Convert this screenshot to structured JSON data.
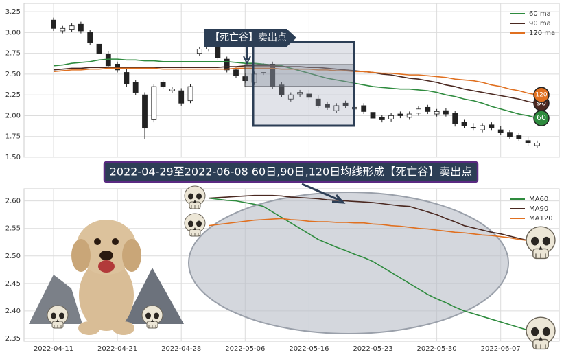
{
  "chart_data": [
    {
      "type": "candlestick",
      "annotation": "【死亡谷】卖出点",
      "ylim": [
        1.5,
        3.35
      ],
      "yticks": [
        {
          "value": 1.5,
          "label": "1.50"
        },
        1.75,
        {
          "value": 2,
          "label": "2.00"
        },
        2.25,
        {
          "value": 2.5,
          "label": "2.50"
        },
        2.75,
        {
          "value": 3,
          "label": "3.00"
        },
        3.25
      ],
      "xtick_indices": [
        0,
        7,
        14,
        21,
        28,
        35,
        42,
        49
      ],
      "grid": true,
      "legend": "upper right",
      "up_color": "#ffffff",
      "down_color": "#222222",
      "open": [
        3.15,
        3.02,
        3.04,
        3.1,
        3.0,
        2.86,
        2.74,
        2.62,
        2.52,
        2.4,
        2.25,
        1.95,
        2.4,
        2.3,
        2.3,
        2.18,
        2.75,
        2.8,
        2.82,
        2.68,
        2.55,
        2.47,
        2.4,
        2.52,
        2.62,
        2.37,
        2.2,
        2.26,
        2.26,
        2.2,
        2.14,
        2.06,
        2.15,
        2.08,
        2.12,
        2.04,
        1.98,
        1.96,
        2.02,
        1.98,
        2.03,
        2.1,
        2.02,
        2.06,
        2.03,
        1.92,
        1.86,
        1.83,
        1.89,
        1.83,
        1.8,
        1.76,
        1.7,
        1.64
      ],
      "high": [
        3.18,
        3.08,
        3.11,
        3.13,
        3.03,
        2.91,
        2.78,
        2.65,
        2.58,
        2.43,
        2.28,
        2.38,
        2.43,
        2.35,
        2.33,
        2.38,
        2.83,
        2.88,
        2.85,
        2.71,
        2.58,
        2.51,
        2.53,
        2.63,
        2.65,
        2.4,
        2.28,
        2.31,
        2.31,
        2.25,
        2.17,
        2.15,
        2.18,
        2.15,
        2.15,
        2.08,
        2.01,
        2.03,
        2.05,
        2.05,
        2.11,
        2.13,
        2.08,
        2.09,
        2.06,
        1.95,
        1.91,
        1.91,
        1.92,
        1.88,
        1.83,
        1.79,
        1.75,
        1.7
      ],
      "low": [
        3.02,
        2.99,
        3.01,
        2.99,
        2.85,
        2.72,
        2.57,
        2.52,
        2.35,
        2.25,
        1.72,
        1.92,
        2.32,
        2.27,
        2.12,
        2.15,
        2.72,
        2.77,
        2.67,
        2.52,
        2.45,
        2.39,
        2.37,
        2.49,
        2.32,
        2.22,
        2.17,
        2.22,
        2.19,
        2.09,
        2.07,
        2.03,
        2.09,
        2.05,
        2.02,
        1.94,
        1.92,
        1.93,
        1.97,
        1.95,
        2.0,
        2.02,
        1.99,
        1.99,
        1.87,
        1.85,
        1.82,
        1.8,
        1.82,
        1.77,
        1.72,
        1.69,
        1.64,
        1.61
      ],
      "close": [
        3.05,
        3.05,
        3.08,
        3.02,
        2.88,
        2.75,
        2.6,
        2.55,
        2.38,
        2.28,
        1.85,
        2.35,
        2.35,
        2.32,
        2.15,
        2.35,
        2.8,
        2.85,
        2.7,
        2.55,
        2.48,
        2.42,
        2.5,
        2.6,
        2.35,
        2.25,
        2.25,
        2.28,
        2.22,
        2.12,
        2.1,
        2.12,
        2.12,
        2.1,
        2.05,
        1.97,
        1.95,
        2.0,
        2.0,
        2.02,
        2.08,
        2.05,
        2.05,
        2.02,
        1.9,
        1.88,
        1.85,
        1.88,
        1.85,
        1.8,
        1.75,
        1.72,
        1.67,
        1.67
      ],
      "series": [
        {
          "name": "60 ma",
          "color": "#2e8b3e",
          "marker_label": "60",
          "values": [
            2.6,
            2.61,
            2.63,
            2.64,
            2.65,
            2.67,
            2.68,
            2.68,
            2.67,
            2.67,
            2.66,
            2.66,
            2.65,
            2.65,
            2.65,
            2.65,
            2.65,
            2.65,
            2.65,
            2.65,
            2.64,
            2.63,
            2.63,
            2.62,
            2.61,
            2.6,
            2.57,
            2.54,
            2.51,
            2.48,
            2.45,
            2.43,
            2.41,
            2.39,
            2.37,
            2.35,
            2.34,
            2.33,
            2.32,
            2.32,
            2.31,
            2.3,
            2.28,
            2.25,
            2.23,
            2.2,
            2.18,
            2.15,
            2.11,
            2.08,
            2.05,
            2.02,
            2.0,
            1.97
          ]
        },
        {
          "name": "90 ma",
          "color": "#4a2820",
          "marker_label": "90",
          "values": [
            2.55,
            2.56,
            2.57,
            2.57,
            2.58,
            2.58,
            2.58,
            2.58,
            2.58,
            2.58,
            2.58,
            2.58,
            2.58,
            2.58,
            2.58,
            2.58,
            2.58,
            2.58,
            2.58,
            2.59,
            2.59,
            2.6,
            2.6,
            2.6,
            2.6,
            2.59,
            2.59,
            2.59,
            2.58,
            2.58,
            2.57,
            2.56,
            2.55,
            2.54,
            2.53,
            2.52,
            2.5,
            2.49,
            2.47,
            2.45,
            2.44,
            2.42,
            2.4,
            2.37,
            2.35,
            2.32,
            2.3,
            2.28,
            2.26,
            2.24,
            2.22,
            2.2,
            2.17,
            2.15
          ]
        },
        {
          "name": "120 ma",
          "color": "#e07020",
          "marker_label": "120",
          "values": [
            2.53,
            2.54,
            2.55,
            2.55,
            2.56,
            2.56,
            2.57,
            2.57,
            2.57,
            2.57,
            2.57,
            2.57,
            2.56,
            2.56,
            2.56,
            2.56,
            2.56,
            2.56,
            2.56,
            2.56,
            2.57,
            2.57,
            2.57,
            2.57,
            2.57,
            2.56,
            2.56,
            2.56,
            2.56,
            2.55,
            2.55,
            2.54,
            2.54,
            2.53,
            2.53,
            2.52,
            2.51,
            2.51,
            2.5,
            2.49,
            2.49,
            2.48,
            2.47,
            2.46,
            2.44,
            2.43,
            2.42,
            2.4,
            2.37,
            2.35,
            2.32,
            2.3,
            2.27,
            2.25
          ]
        }
      ]
    },
    {
      "type": "line",
      "title": "2022-04-29至2022-06-08 60日,90日,120日均线形成【死亡谷】卖出点",
      "categories": [
        "2022-04-11",
        null,
        null,
        null,
        null,
        null,
        null,
        "2022-04-21",
        null,
        null,
        null,
        null,
        null,
        null,
        "2022-04-28",
        null,
        null,
        null,
        null,
        null,
        null,
        "2022-05-06",
        null,
        null,
        null,
        null,
        null,
        null,
        "2022-05-16",
        null,
        null,
        null,
        null,
        null,
        null,
        "2022-05-23",
        null,
        null,
        null,
        null,
        null,
        null,
        "2022-05-30",
        null,
        null,
        null,
        null,
        null,
        null,
        "2022-06-07",
        null,
        null,
        null,
        null
      ],
      "ylim": [
        2.345,
        2.622
      ],
      "yticks": [
        2.35,
        {
          "value": 2.4,
          "label": "2.40"
        },
        2.45,
        {
          "value": 2.5,
          "label": "2.50"
        },
        2.55,
        {
          "value": 2.6,
          "label": "2.60"
        }
      ],
      "grid": true,
      "legend": "upper right",
      "series": [
        {
          "name": "MA60",
          "color": "#2e8b3e",
          "values": [
            null,
            null,
            null,
            null,
            null,
            null,
            null,
            null,
            null,
            null,
            null,
            null,
            null,
            null,
            null,
            null,
            null,
            2.605,
            2.603,
            2.601,
            2.6,
            2.597,
            2.594,
            2.59,
            2.58,
            2.57,
            2.56,
            2.55,
            2.54,
            2.53,
            2.523,
            2.516,
            2.51,
            2.503,
            2.497,
            2.49,
            2.48,
            2.47,
            2.46,
            2.45,
            2.44,
            2.43,
            2.422,
            2.415,
            2.407,
            2.4,
            2.395,
            2.39,
            2.385,
            2.38,
            2.375,
            2.37,
            2.365,
            2.36
          ]
        },
        {
          "name": "MA90",
          "color": "#4a2820",
          "values": [
            null,
            null,
            null,
            null,
            null,
            null,
            null,
            null,
            null,
            null,
            null,
            null,
            null,
            null,
            null,
            null,
            null,
            2.605,
            2.606,
            2.607,
            2.608,
            2.609,
            2.61,
            2.61,
            2.61,
            2.609,
            2.607,
            2.606,
            2.605,
            2.604,
            2.602,
            2.601,
            2.6,
            2.599,
            2.598,
            2.597,
            2.595,
            2.593,
            2.591,
            2.59,
            2.585,
            2.58,
            2.575,
            2.568,
            2.562,
            2.555,
            2.551,
            2.547,
            2.543,
            2.54,
            2.536,
            2.532,
            2.528,
            2.525
          ]
        },
        {
          "name": "MA120",
          "color": "#e07020",
          "values": [
            null,
            null,
            null,
            null,
            null,
            null,
            null,
            null,
            null,
            null,
            null,
            null,
            null,
            null,
            null,
            null,
            null,
            2.555,
            2.557,
            2.559,
            2.561,
            2.563,
            2.565,
            2.566,
            2.567,
            2.568,
            2.566,
            2.565,
            2.563,
            2.562,
            2.562,
            2.561,
            2.561,
            2.56,
            2.56,
            2.558,
            2.557,
            2.555,
            2.554,
            2.552,
            2.55,
            2.549,
            2.547,
            2.545,
            2.543,
            2.542,
            2.54,
            2.538,
            2.537,
            2.535,
            2.533,
            2.53,
            2.528,
            2.525
          ]
        }
      ]
    }
  ]
}
